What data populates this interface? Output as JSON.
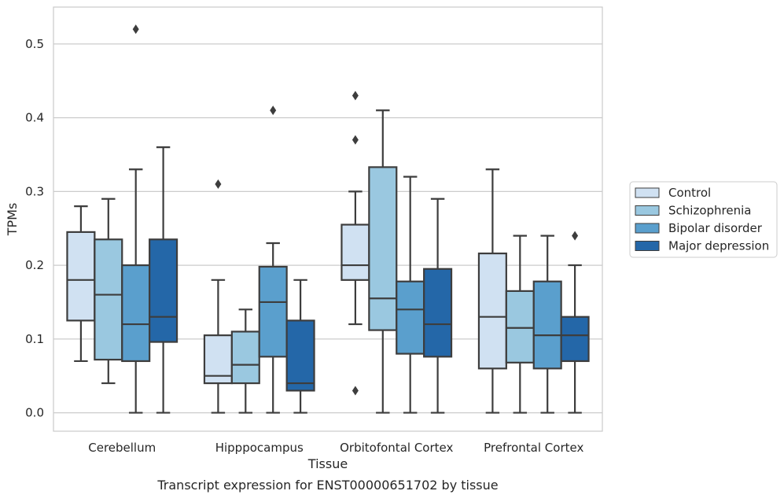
{
  "chart_data": {
    "type": "box",
    "title": "",
    "caption": "Transcript expression for ENST00000651702 by tissue",
    "xlabel": "Tissue",
    "ylabel": "TPMs",
    "ylim": [
      -0.025,
      0.55
    ],
    "yticks": [
      "0.0",
      "0.1",
      "0.2",
      "0.3",
      "0.4",
      "0.5"
    ],
    "ytick_values": [
      0.0,
      0.1,
      0.2,
      0.3,
      0.4,
      0.5
    ],
    "grid": true,
    "legend_position": "right",
    "categories": [
      "Cerebellum",
      "Hipppocampus",
      "Orbitofontal Cortex",
      "Prefrontal Cortex"
    ],
    "series": [
      {
        "name": "Control",
        "color": "#d0e1f2",
        "boxes": [
          {
            "whisker_low": 0.07,
            "q1": 0.125,
            "median": 0.18,
            "q3": 0.245,
            "whisker_high": 0.28,
            "outliers": []
          },
          {
            "whisker_low": 0.0,
            "q1": 0.04,
            "median": 0.05,
            "q3": 0.105,
            "whisker_high": 0.18,
            "outliers": [
              0.31
            ]
          },
          {
            "whisker_low": 0.12,
            "q1": 0.18,
            "median": 0.2,
            "q3": 0.255,
            "whisker_high": 0.3,
            "outliers": [
              0.43,
              0.37,
              0.03
            ]
          },
          {
            "whisker_low": 0.0,
            "q1": 0.06,
            "median": 0.13,
            "q3": 0.216,
            "whisker_high": 0.33,
            "outliers": []
          }
        ]
      },
      {
        "name": "Schizophrenia",
        "color": "#9ac8e0",
        "boxes": [
          {
            "whisker_low": 0.04,
            "q1": 0.072,
            "median": 0.16,
            "q3": 0.235,
            "whisker_high": 0.29,
            "outliers": []
          },
          {
            "whisker_low": 0.0,
            "q1": 0.04,
            "median": 0.065,
            "q3": 0.11,
            "whisker_high": 0.14,
            "outliers": []
          },
          {
            "whisker_low": 0.0,
            "q1": 0.112,
            "median": 0.155,
            "q3": 0.333,
            "whisker_high": 0.41,
            "outliers": []
          },
          {
            "whisker_low": 0.0,
            "q1": 0.068,
            "median": 0.115,
            "q3": 0.165,
            "whisker_high": 0.24,
            "outliers": []
          }
        ]
      },
      {
        "name": "Bipolar disorder",
        "color": "#5a9fcd",
        "boxes": [
          {
            "whisker_low": 0.0,
            "q1": 0.07,
            "median": 0.12,
            "q3": 0.2,
            "whisker_high": 0.33,
            "outliers": [
              0.52
            ]
          },
          {
            "whisker_low": 0.0,
            "q1": 0.076,
            "median": 0.15,
            "q3": 0.198,
            "whisker_high": 0.23,
            "outliers": [
              0.41
            ]
          },
          {
            "whisker_low": 0.0,
            "q1": 0.08,
            "median": 0.14,
            "q3": 0.178,
            "whisker_high": 0.32,
            "outliers": []
          },
          {
            "whisker_low": 0.0,
            "q1": 0.06,
            "median": 0.105,
            "q3": 0.178,
            "whisker_high": 0.24,
            "outliers": []
          }
        ]
      },
      {
        "name": "Major depression",
        "color": "#2467a8",
        "boxes": [
          {
            "whisker_low": 0.0,
            "q1": 0.096,
            "median": 0.13,
            "q3": 0.235,
            "whisker_high": 0.36,
            "outliers": []
          },
          {
            "whisker_low": 0.0,
            "q1": 0.03,
            "median": 0.04,
            "q3": 0.125,
            "whisker_high": 0.18,
            "outliers": []
          },
          {
            "whisker_low": 0.0,
            "q1": 0.076,
            "median": 0.12,
            "q3": 0.195,
            "whisker_high": 0.29,
            "outliers": []
          },
          {
            "whisker_low": 0.0,
            "q1": 0.07,
            "median": 0.105,
            "q3": 0.13,
            "whisker_high": 0.2,
            "outliers": [
              0.24
            ]
          }
        ]
      }
    ]
  }
}
